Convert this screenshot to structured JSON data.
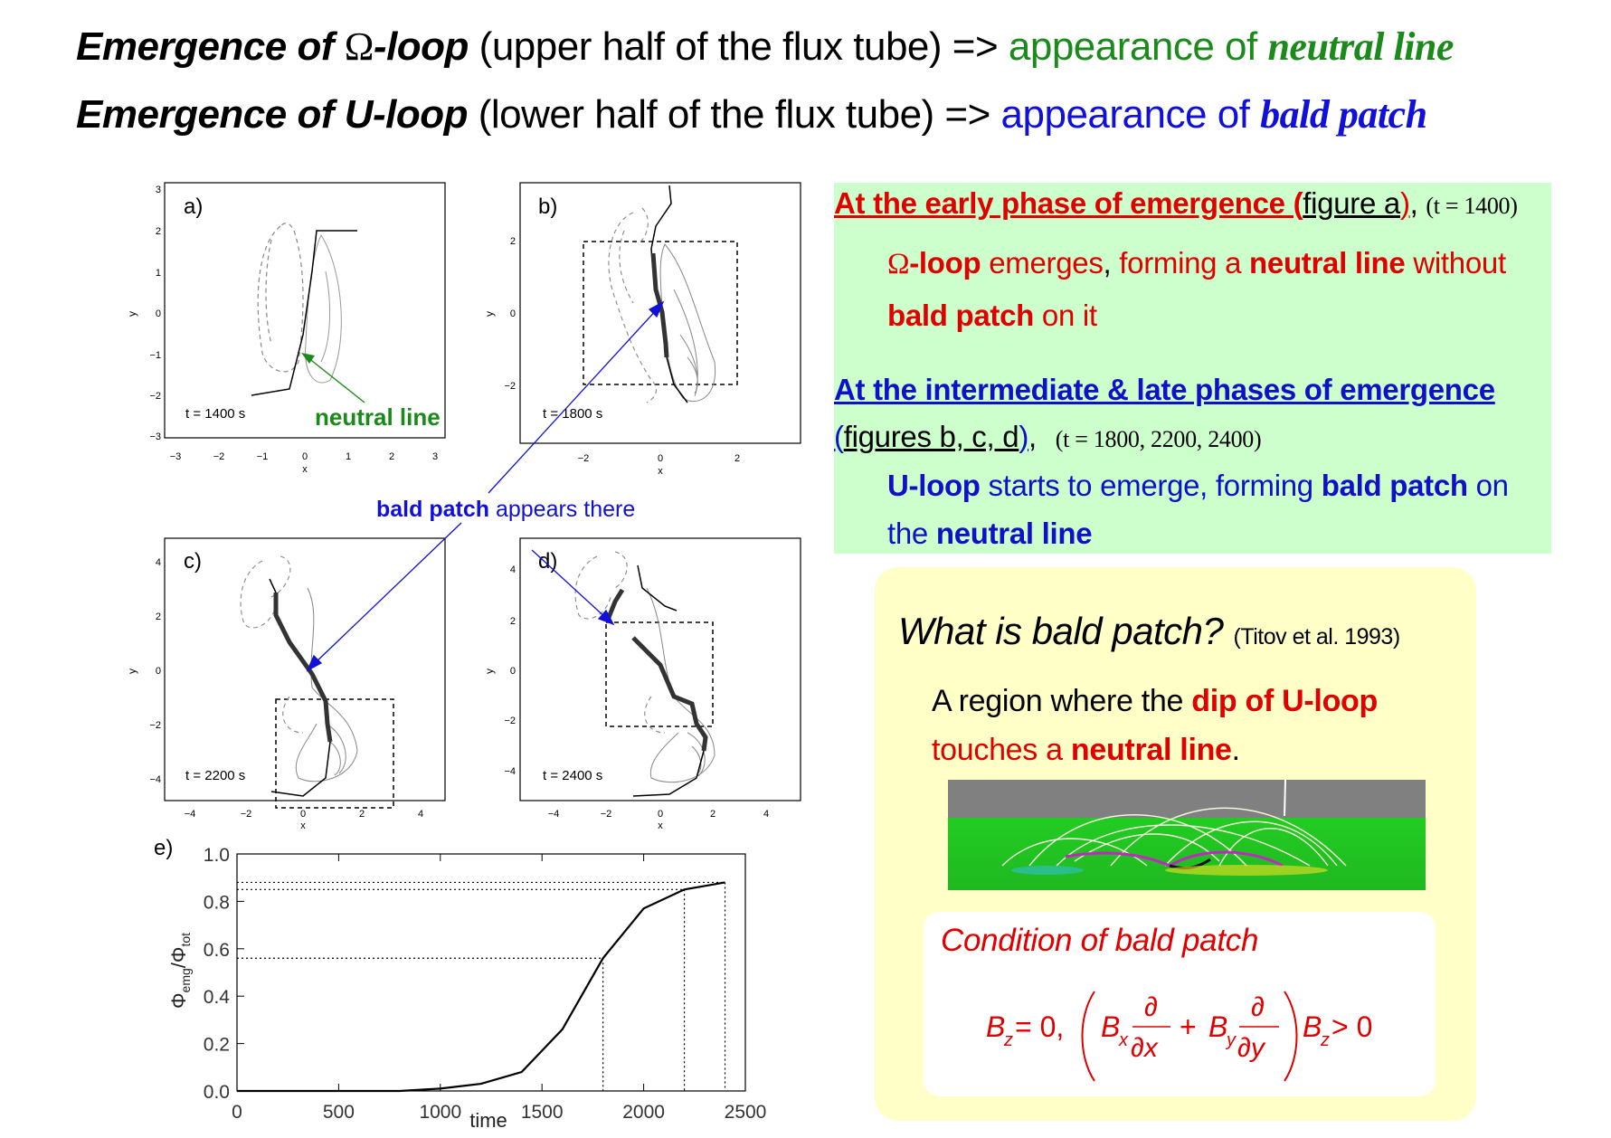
{
  "title1": {
    "bold_prefix": "Emergence of ",
    "omega": "Ω",
    "bold_suffix": "-loop",
    "normal": " (upper half of the flux tube) => ",
    "green_normal": "appearance of ",
    "green_serif": "neutral line"
  },
  "title2": {
    "bold": "Emergence of U-loop",
    "normal": " (lower half of the flux tube) => ",
    "blue_normal": "appearance of ",
    "blue_serif": "bald patch"
  },
  "panels": {
    "a": {
      "label": "a)",
      "time": "t = 1400 s",
      "xlabel": "x",
      "ylabel": "y",
      "xticks": [
        "−3",
        "−2",
        "−1",
        "0",
        "1",
        "2",
        "3"
      ],
      "yticks": [
        "3",
        "2",
        "1",
        "0",
        "−1",
        "−2",
        "−3"
      ]
    },
    "b": {
      "label": "b)",
      "time": "t = 1800 s",
      "xlabel": "x",
      "ylabel": "y",
      "xticks": [
        "−2",
        "0",
        "2"
      ],
      "yticks": [
        "2",
        "0",
        "−2"
      ]
    },
    "c": {
      "label": "c)",
      "time": "t = 2200 s",
      "xlabel": "x",
      "ylabel": "y",
      "xticks": [
        "−4",
        "−2",
        "0",
        "2",
        "4"
      ],
      "yticks": [
        "4",
        "2",
        "0",
        "−2",
        "−4"
      ]
    },
    "d": {
      "label": "d)",
      "time": "t = 2400 s",
      "xlabel": "x",
      "ylabel": "y",
      "xticks": [
        "−4",
        "−2",
        "0",
        "2",
        "4"
      ],
      "yticks": [
        "4",
        "2",
        "0",
        "−2",
        "−4"
      ]
    }
  },
  "annotations": {
    "neutral_line": "neutral line",
    "bald_patch_bold": "bald patch",
    "bald_patch_rest": " appears there"
  },
  "chart_data": {
    "type": "line",
    "panel_label": "e)",
    "xlabel": "time",
    "ylabel_main": "Φ",
    "ylabel_sub1": "emg",
    "ylabel_sep": "/Φ",
    "ylabel_sub2": "tot",
    "xlim": [
      0,
      2500
    ],
    "ylim": [
      0.0,
      1.0
    ],
    "xticks": [
      0,
      500,
      1000,
      1500,
      2000,
      2500
    ],
    "yticks": [
      0.0,
      0.2,
      0.4,
      0.6,
      0.8,
      1.0
    ],
    "x": [
      0,
      200,
      400,
      600,
      800,
      1000,
      1200,
      1400,
      1600,
      1800,
      2000,
      2200,
      2400
    ],
    "y": [
      0.0,
      0.0,
      0.0,
      0.0,
      0.0,
      0.01,
      0.03,
      0.08,
      0.26,
      0.56,
      0.77,
      0.85,
      0.88
    ],
    "guides": [
      [
        1800,
        0.56
      ],
      [
        2200,
        0.85
      ],
      [
        2400,
        0.88
      ]
    ]
  },
  "green_box": {
    "h1_red": "At the early phase of emergence (",
    "h1_black": "figure a",
    "h1_red2": ")",
    "h1_comma": ",",
    "h1_time": "(t = 1400)",
    "l1_omega": "Ω",
    "l1_bold": "-loop",
    "l1_a": " emerges",
    "l1_comma": ",",
    "l1_b": " forming a ",
    "l1_bold2": "neutral line",
    "l1_c": " without",
    "l2_bold": "bald patch",
    "l2_rest": " on it",
    "h2": "At the intermediate & late phases of emergence",
    "h3_open": "(",
    "h3_fig": "figures b, c, d",
    "h3_close": ")",
    "h3_comma": ",",
    "h3_time": "(t = 1800, 2200, 2400)",
    "l3_bold": "U-loop",
    "l3_a": " starts to emerge, forming ",
    "l3_bold2": "bald patch",
    "l3_b": " on",
    "l4_a": "the ",
    "l4_bold": "neutral line"
  },
  "yellow_box": {
    "q": "What is bald patch?",
    "ref": "(Titov et al. 1993)",
    "d1": "A region where the ",
    "d1_bold": "dip of U-loop",
    "d2": "touches a ",
    "d2_bold": "neutral line",
    "d2_end": ".",
    "cond_title": "Condition of bald patch",
    "f_B": "B",
    "f_z": "z",
    "f_eq0": " = 0, ",
    "f_Bx": "B",
    "f_x": "x",
    "f_partial": "∂",
    "f_dx": "∂x",
    "f_plus": "+",
    "f_By": "B",
    "f_y": "y",
    "f_dy": "∂y",
    "f_Bz2": "B",
    "f_z2": "z",
    "f_gt0": " > 0"
  }
}
